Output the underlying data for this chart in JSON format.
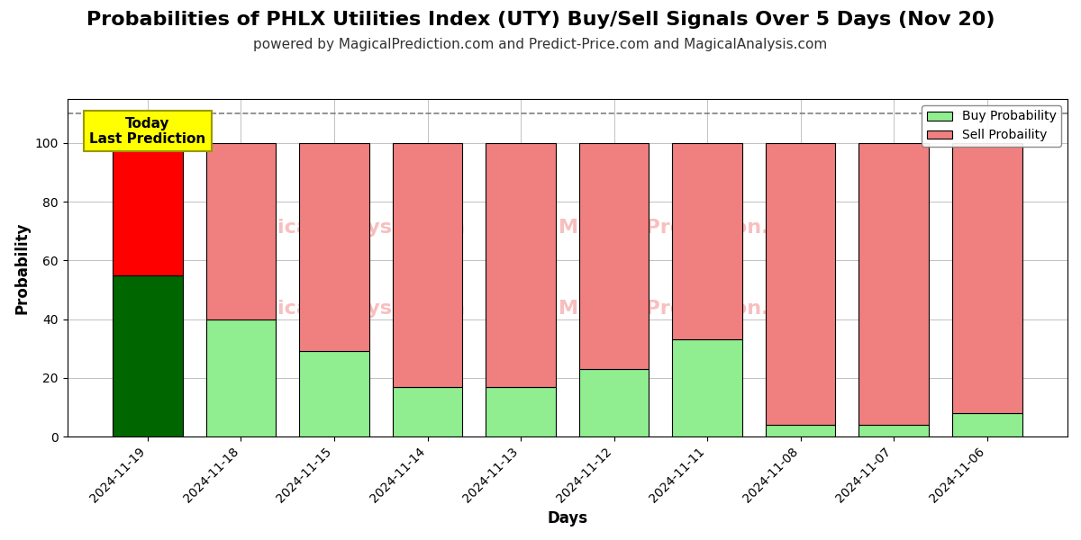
{
  "title": "Probabilities of PHLX Utilities Index (UTY) Buy/Sell Signals Over 5 Days (Nov 20)",
  "subtitle": "powered by MagicalPrediction.com and Predict-Price.com and MagicalAnalysis.com",
  "xlabel": "Days",
  "ylabel": "Probability",
  "dates": [
    "2024-11-19",
    "2024-11-18",
    "2024-11-15",
    "2024-11-14",
    "2024-11-13",
    "2024-11-12",
    "2024-11-11",
    "2024-11-08",
    "2024-11-07",
    "2024-11-06"
  ],
  "buy_values": [
    55,
    40,
    29,
    17,
    17,
    23,
    33,
    4,
    4,
    8
  ],
  "sell_values": [
    45,
    60,
    71,
    83,
    83,
    77,
    67,
    96,
    96,
    92
  ],
  "today_buy_color": "#006600",
  "today_sell_color": "#ff0000",
  "buy_color": "#90EE90",
  "sell_color": "#F08080",
  "annotation_text": "Today\nLast Prediction",
  "annotation_bg": "#ffff00",
  "ylim_max": 115,
  "yticks": [
    0,
    20,
    40,
    60,
    80,
    100
  ],
  "dashed_line_y": 110,
  "legend_buy_label": "Buy Probability",
  "legend_sell_label": "Sell Probaility",
  "bar_edge_color": "#000000",
  "bar_linewidth": 0.8,
  "grid_color": "#aaaaaa",
  "background_color": "#ffffff",
  "title_fontsize": 16,
  "subtitle_fontsize": 11,
  "label_fontsize": 12,
  "tick_fontsize": 10,
  "bar_width": 0.75
}
